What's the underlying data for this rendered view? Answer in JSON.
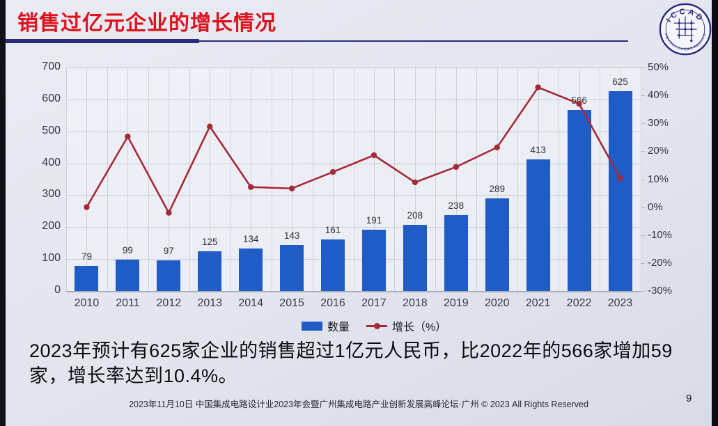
{
  "slide": {
    "title": "销售过亿元企业的增长情况",
    "body_text": "2023年预计有625家企业的销售超过1亿元人民币，比2022年的566家增加59家，增长率达到10.4%。",
    "footer": "2023年11月10日 中国集成电路设计业2023年会暨广州集成电路产业创新发展高峰论坛·广州 © 2023 All Rights Reserved",
    "page_number": "9",
    "logo": {
      "acronym": "ICCAD",
      "ring_text": "中国半导体行业协会集成电路设计分会"
    }
  },
  "colors": {
    "title_red": "#dd121c",
    "underline_navy": "#2b2b7e",
    "bar_blue": "#1f5cc6",
    "line_red": "#a32b38",
    "slide_background": "#e2e4ee",
    "logo_navy": "#26267c"
  },
  "chart_data": {
    "type": "bar",
    "subtype": "combo-bar-line",
    "categories": [
      "2010",
      "2011",
      "2012",
      "2013",
      "2014",
      "2015",
      "2016",
      "2017",
      "2018",
      "2019",
      "2020",
      "2021",
      "2022",
      "2023"
    ],
    "series": [
      {
        "name": "数量",
        "type": "bar",
        "axis": "left",
        "values": [
          79,
          99,
          97,
          125,
          134,
          143,
          161,
          191,
          208,
          238,
          289,
          413,
          566,
          625
        ]
      },
      {
        "name": "增长（%）",
        "type": "line",
        "axis": "right",
        "values": [
          0,
          25.3,
          -2.0,
          28.9,
          7.2,
          6.7,
          12.6,
          18.6,
          8.9,
          14.4,
          21.4,
          42.9,
          37.0,
          10.4
        ]
      }
    ],
    "left_axis": {
      "min": 0,
      "max": 700,
      "step": 100,
      "ticks": [
        "0",
        "100",
        "200",
        "300",
        "400",
        "500",
        "600",
        "700"
      ]
    },
    "right_axis": {
      "min": -30,
      "max": 50,
      "step": 10,
      "ticks": [
        "-30%",
        "-20%",
        "-10%",
        "0%",
        "10%",
        "20%",
        "30%",
        "40%",
        "50%"
      ]
    },
    "grid": true,
    "legend_position": "bottom",
    "legend": [
      {
        "label": "数量",
        "marker": "bar"
      },
      {
        "label": "增长（%）",
        "marker": "line-dot"
      }
    ],
    "data_labels": true
  }
}
